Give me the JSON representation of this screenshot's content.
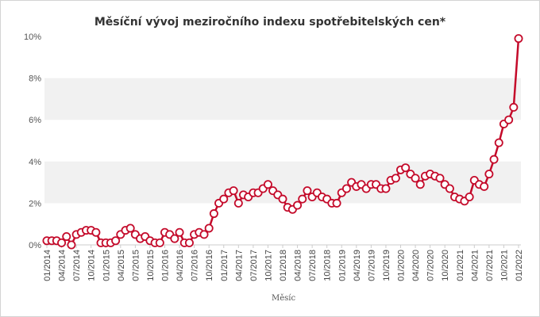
{
  "colors": {
    "series": "#c40a2a",
    "band": "#f1f1f1",
    "marker_fill": "#ffffff"
  },
  "chart_data": {
    "type": "line",
    "title": "Měsíční vývoj meziročního indexu spotřebitelských cen*",
    "xlabel": "Měsíc",
    "ylabel": "",
    "ylim": [
      0,
      10
    ],
    "y_ticks": [
      "0%",
      "2%",
      "4%",
      "6%",
      "8%",
      "10%"
    ],
    "grid": "alternating horizontal bands",
    "x_tick_labels": [
      "01/2014",
      "04/2014",
      "07/2014",
      "10/2014",
      "01/2015",
      "04/2015",
      "07/2015",
      "10/2015",
      "01/2016",
      "04/2016",
      "07/2016",
      "10/2016",
      "01/2017",
      "04/2017",
      "07/2017",
      "10/2017",
      "01/2018",
      "04/2018",
      "07/2018",
      "10/2018",
      "01/2019",
      "04/2019",
      "07/2019",
      "10/2019",
      "01/2020",
      "04/2020",
      "07/2020",
      "10/2020",
      "01/2021",
      "04/2021",
      "07/2021",
      "10/2021",
      "01/2022"
    ],
    "x": [
      "01/2014",
      "02/2014",
      "03/2014",
      "04/2014",
      "05/2014",
      "06/2014",
      "07/2014",
      "08/2014",
      "09/2014",
      "10/2014",
      "11/2014",
      "12/2014",
      "01/2015",
      "02/2015",
      "03/2015",
      "04/2015",
      "05/2015",
      "06/2015",
      "07/2015",
      "08/2015",
      "09/2015",
      "10/2015",
      "11/2015",
      "12/2015",
      "01/2016",
      "02/2016",
      "03/2016",
      "04/2016",
      "05/2016",
      "06/2016",
      "07/2016",
      "08/2016",
      "09/2016",
      "10/2016",
      "11/2016",
      "12/2016",
      "01/2017",
      "02/2017",
      "03/2017",
      "04/2017",
      "05/2017",
      "06/2017",
      "07/2017",
      "08/2017",
      "09/2017",
      "10/2017",
      "11/2017",
      "12/2017",
      "01/2018",
      "02/2018",
      "03/2018",
      "04/2018",
      "05/2018",
      "06/2018",
      "07/2018",
      "08/2018",
      "09/2018",
      "10/2018",
      "11/2018",
      "12/2018",
      "01/2019",
      "02/2019",
      "03/2019",
      "04/2019",
      "05/2019",
      "06/2019",
      "07/2019",
      "08/2019",
      "09/2019",
      "10/2019",
      "11/2019",
      "12/2019",
      "01/2020",
      "02/2020",
      "03/2020",
      "04/2020",
      "05/2020",
      "06/2020",
      "07/2020",
      "08/2020",
      "09/2020",
      "10/2020",
      "11/2020",
      "12/2020",
      "01/2021",
      "02/2021",
      "03/2021",
      "04/2021",
      "05/2021",
      "06/2021",
      "07/2021",
      "08/2021",
      "09/2021",
      "10/2021",
      "11/2021",
      "12/2021",
      "01/2022"
    ],
    "series": [
      {
        "values": [
          0.2,
          0.2,
          0.2,
          0.1,
          0.4,
          0.0,
          0.5,
          0.6,
          0.7,
          0.7,
          0.6,
          0.1,
          0.1,
          0.1,
          0.2,
          0.5,
          0.7,
          0.8,
          0.5,
          0.3,
          0.4,
          0.2,
          0.1,
          0.1,
          0.6,
          0.5,
          0.3,
          0.6,
          0.1,
          0.1,
          0.5,
          0.6,
          0.5,
          0.8,
          1.5,
          2.0,
          2.2,
          2.5,
          2.6,
          2.0,
          2.4,
          2.3,
          2.5,
          2.5,
          2.7,
          2.9,
          2.6,
          2.4,
          2.2,
          1.8,
          1.7,
          1.9,
          2.2,
          2.6,
          2.3,
          2.5,
          2.3,
          2.2,
          2.0,
          2.0,
          2.5,
          2.7,
          3.0,
          2.8,
          2.9,
          2.7,
          2.9,
          2.9,
          2.7,
          2.7,
          3.1,
          3.2,
          3.6,
          3.7,
          3.4,
          3.2,
          2.9,
          3.3,
          3.4,
          3.3,
          3.2,
          2.9,
          2.7,
          2.3,
          2.2,
          2.1,
          2.3,
          3.1,
          2.9,
          2.8,
          3.4,
          4.1,
          4.9,
          5.8,
          6.0,
          6.6,
          9.9
        ]
      }
    ]
  }
}
